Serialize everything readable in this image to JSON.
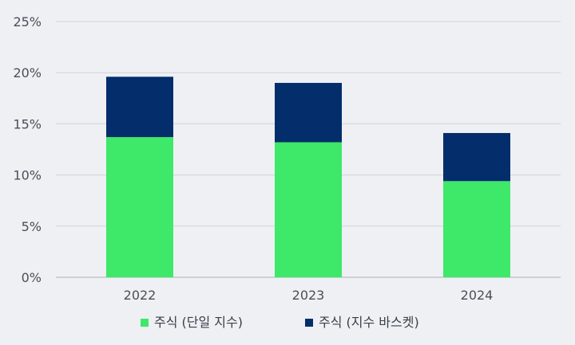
{
  "chart_data": {
    "type": "bar",
    "stacked": true,
    "categories": [
      "2022",
      "2023",
      "2024"
    ],
    "series": [
      {
        "name": "주식 (단일 지수)",
        "values": [
          13.7,
          13.2,
          9.4
        ],
        "color": "#3ee868"
      },
      {
        "name": "주식 (지수 바스켓)",
        "values": [
          5.9,
          5.8,
          4.7
        ],
        "color": "#032d6b"
      }
    ],
    "y_ticks": [
      "0%",
      "5%",
      "10%",
      "15%",
      "20%",
      "25%"
    ],
    "ylim": [
      0,
      25
    ],
    "title": "",
    "xlabel": "",
    "ylabel": "",
    "grid": true,
    "legend_position": "bottom"
  }
}
